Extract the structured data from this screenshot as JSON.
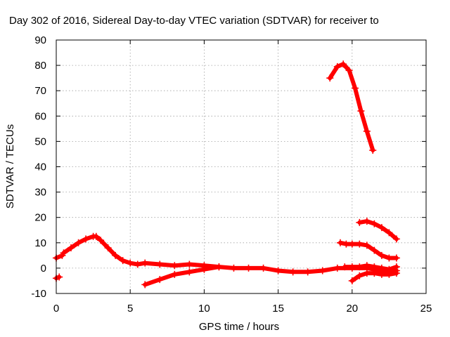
{
  "chart_data": {
    "type": "line",
    "title": "Day 302 of 2016, Sidereal Day-to-day VTEC variation (SDTVAR) for receiver to",
    "xlabel": "GPS time / hours",
    "ylabel": "SDTVAR / TECUs",
    "xlim": [
      0,
      25
    ],
    "ylim": [
      -10,
      90
    ],
    "xticks": [
      0,
      5,
      10,
      15,
      20,
      25
    ],
    "yticks": [
      -10,
      0,
      10,
      20,
      30,
      40,
      50,
      60,
      70,
      80,
      90
    ],
    "grid": true,
    "marker": "plus",
    "color": "#ff0000",
    "series": [
      {
        "x": [
          0.0,
          0.2
        ],
        "y": [
          -4,
          -3.5
        ]
      },
      {
        "x": [
          0.0,
          0.4
        ],
        "y": [
          4,
          5
        ]
      },
      {
        "x": [
          0.5,
          1.0,
          1.5,
          2.0,
          2.5,
          2.7,
          3.0,
          3.5,
          4.0,
          4.5,
          5.0,
          5.5,
          6.0,
          7.0,
          8.0,
          9.0,
          10.0,
          11.0,
          12.0,
          13.0,
          14.0,
          15.0,
          16.0,
          17.0,
          18.0,
          19.0,
          20.0,
          21.0,
          22.0,
          23.0
        ],
        "y": [
          6,
          8,
          10,
          11.5,
          12.5,
          12.5,
          11,
          8,
          5,
          3,
          2,
          1.5,
          2,
          1.5,
          1,
          1.5,
          1,
          0.5,
          0,
          0,
          0,
          -1,
          -1.5,
          -1.5,
          -1,
          0,
          0,
          0,
          -1,
          -1
        ]
      },
      {
        "x": [
          6.0,
          7.0,
          8.0,
          9.0,
          10.0,
          11.0
        ],
        "y": [
          -6.5,
          -4.5,
          -2.5,
          -1.5,
          -0.5,
          0.5
        ]
      },
      {
        "x": [
          18.5,
          19.0,
          19.4,
          19.8,
          20.2,
          20.6,
          21.0,
          21.4
        ],
        "y": [
          75,
          79.5,
          80.5,
          78,
          71,
          62,
          54,
          46.5
        ]
      },
      {
        "x": [
          19.2,
          19.6,
          20.0,
          20.5,
          21.0,
          21.5,
          22.0,
          22.5,
          23.0
        ],
        "y": [
          10,
          9.5,
          9.5,
          9.5,
          9,
          7,
          5,
          4,
          4
        ]
      },
      {
        "x": [
          20.5,
          21.0,
          21.5,
          22.0,
          22.5,
          23.0
        ],
        "y": [
          18,
          18.5,
          17.5,
          16,
          14,
          11.5
        ]
      },
      {
        "x": [
          20.0,
          20.5,
          21.0,
          21.5,
          22.0,
          22.5,
          23.0
        ],
        "y": [
          -5,
          -3,
          -2,
          -2,
          -2.5,
          -2.5,
          -2
        ]
      },
      {
        "x": [
          19.5,
          20.0,
          20.5,
          21.0,
          21.5,
          22.0,
          22.5,
          23.0
        ],
        "y": [
          0.5,
          0.5,
          0.5,
          1,
          0.5,
          0,
          -0.5,
          0.5
        ]
      }
    ]
  }
}
